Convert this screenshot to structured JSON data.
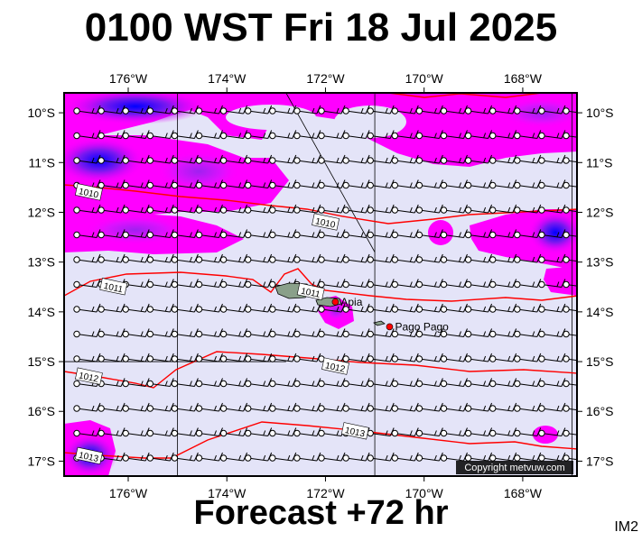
{
  "header": {
    "title": "0100 WST Fri 18 Jul 2025"
  },
  "footer": {
    "forecast": "Forecast +72 hr",
    "image_id": "IM2"
  },
  "copyright": "Copyright metvuw.com",
  "colors": {
    "background_field": "#e4e4f8",
    "rain_light": "#ff00ff",
    "rain_medium": "#a020f0",
    "rain_heavy": "#0000ff",
    "isobar": "#ff0000",
    "land": "#8aa08a",
    "city_dot": "#ff0000",
    "grid": "#000000"
  },
  "axes": {
    "lon_labels": [
      "176°W",
      "174°W",
      "172°W",
      "170°W",
      "168°W"
    ],
    "lat_labels": [
      "10°S",
      "11°S",
      "12°S",
      "13°S",
      "14°S",
      "15°S",
      "16°S",
      "17°S"
    ],
    "lon_range": [
      -177.3,
      -166.9
    ],
    "lat_range": [
      -17.3,
      -9.6
    ]
  },
  "cities": [
    {
      "name": "Apia",
      "lon": -171.8,
      "lat": -13.8
    },
    {
      "name": "Pago Pago",
      "lon": -170.7,
      "lat": -14.3
    }
  ],
  "isobars": [
    {
      "label": "1010",
      "label_lon": -176.8,
      "label_lat": -11.6
    },
    {
      "label": "1010",
      "label_lon": -172.0,
      "label_lat": -12.2
    },
    {
      "label": "1011",
      "label_lon": -176.3,
      "label_lat": -13.5
    },
    {
      "label": "1011",
      "label_lon": -172.3,
      "label_lat": -13.6
    },
    {
      "label": "1012",
      "label_lon": -176.8,
      "label_lat": -15.3
    },
    {
      "label": "1012",
      "label_lon": -171.8,
      "label_lat": -15.1
    },
    {
      "label": "1013",
      "label_lon": -176.8,
      "label_lat": -16.9
    },
    {
      "label": "1013",
      "label_lon": -171.4,
      "label_lat": -16.4
    }
  ],
  "wind": {
    "direction": "east-southeast",
    "barb": "10-15 kt"
  }
}
